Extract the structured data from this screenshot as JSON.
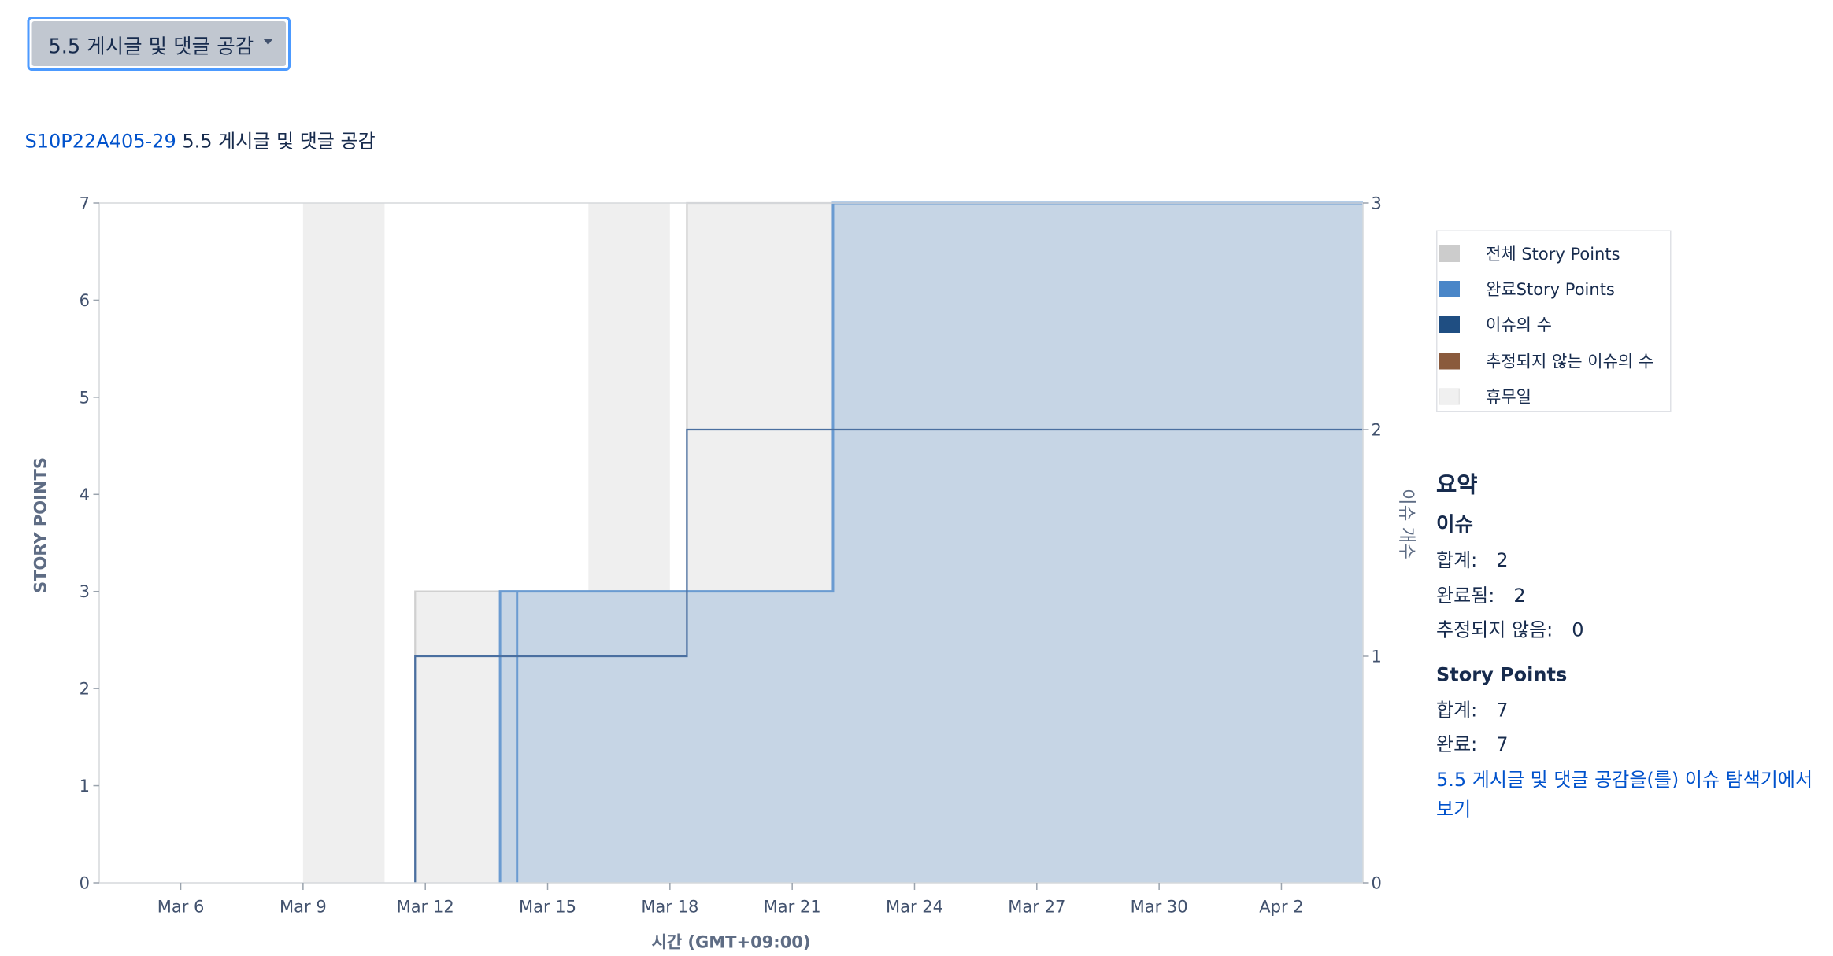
{
  "dropdown": {
    "label": "5.5 게시글 및 댓글 공감"
  },
  "header": {
    "issue_key": "S10P22A405-29",
    "issue_title": "5.5 게시글 및 댓글 공감"
  },
  "legend": {
    "items": [
      {
        "label": "전체 Story Points",
        "color": "#cccccc"
      },
      {
        "label": "완료Story Points",
        "color": "#4a86c8"
      },
      {
        "label": "이슈의 수",
        "color": "#1f4e82"
      },
      {
        "label": "추정되지 않는 이슈의 수",
        "color": "#8a5a3c"
      },
      {
        "label": "휴무일",
        "color": "#f0f0f0"
      }
    ]
  },
  "summary": {
    "title": "요약",
    "issues_heading": "이슈",
    "total_label": "합계:",
    "total_value": "2",
    "done_label": "완료됨:",
    "done_value": "2",
    "unestimated_label": "추정되지 않음:",
    "unestimated_value": "0",
    "sp_heading": "Story Points",
    "sp_total_label": "합계:",
    "sp_total_value": "7",
    "sp_done_label": "완료:",
    "sp_done_value": "7",
    "explorer_link": "5.5 게시글 및 댓글 공감을(를) 이슈 탐색기에서 보기"
  },
  "chart_data": {
    "type": "area",
    "xlabel": "시간 (GMT+09:00)",
    "ylabel": "STORY POINTS",
    "ylabel_right": "이슈 개수",
    "x_ticks": [
      "Mar 6",
      "Mar 9",
      "Mar 12",
      "Mar 15",
      "Mar 18",
      "Mar 21",
      "Mar 24",
      "Mar 27",
      "Mar 30",
      "Apr 2"
    ],
    "y_ticks": [
      0,
      1,
      2,
      3,
      4,
      5,
      6,
      7
    ],
    "y2_ticks": [
      0,
      1,
      2,
      3
    ],
    "xlim": [
      "2024-03-04",
      "2024-04-04"
    ],
    "ylim": [
      0,
      7
    ],
    "y2lim": [
      0,
      3
    ],
    "non_working_days": [
      [
        "2024-03-09",
        "2024-03-11"
      ],
      [
        "2024-03-16",
        "2024-03-18"
      ],
      [
        "2024-03-23",
        "2024-03-25"
      ],
      [
        "2024-03-30",
        "2024-04-01"
      ]
    ],
    "colors": {
      "total_fill": "#efefef",
      "total_line": "#d0d0d0",
      "completed_fill": "#4a86c8",
      "completed_line": "#6a9bd1",
      "issue_line": "#4a6fa0",
      "plot_border": "#d5d8dc"
    },
    "series": [
      {
        "name": "전체 Story Points",
        "axis": "left",
        "points": [
          [
            "2024-03-11T18:00",
            0
          ],
          [
            "2024-03-11T18:00",
            3
          ],
          [
            "2024-03-18T10:00",
            3
          ],
          [
            "2024-03-18T10:00",
            7
          ],
          [
            "2024-04-04",
            7
          ]
        ]
      },
      {
        "name": "완료Story Points",
        "axis": "left",
        "points": [
          [
            "2024-03-13T20:00",
            0
          ],
          [
            "2024-03-13T20:00",
            3
          ],
          [
            "2024-03-14T06:00",
            3
          ],
          [
            "2024-03-14T06:00",
            0
          ],
          [
            "2024-03-14T06:00",
            3
          ],
          [
            "2024-03-22T00:00",
            3
          ],
          [
            "2024-03-22T00:00",
            7
          ],
          [
            "2024-04-04",
            7
          ]
        ]
      },
      {
        "name": "이슈의 수",
        "axis": "right",
        "points": [
          [
            "2024-03-11T18:00",
            0
          ],
          [
            "2024-03-11T18:00",
            1
          ],
          [
            "2024-03-18T10:00",
            1
          ],
          [
            "2024-03-18T10:00",
            2
          ],
          [
            "2024-04-04",
            2
          ]
        ]
      }
    ]
  }
}
